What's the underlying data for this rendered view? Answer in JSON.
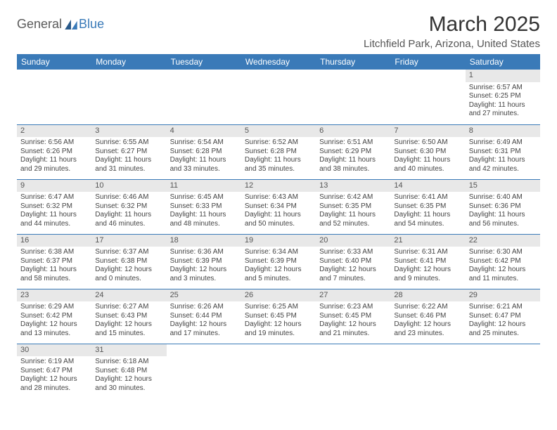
{
  "logo": {
    "text1": "General",
    "text2": "Blue"
  },
  "title": "March 2025",
  "location": "Litchfield Park, Arizona, United States",
  "colors": {
    "header_bg": "#3a7ab8",
    "header_text": "#ffffff",
    "border": "#3a7ab8",
    "daynum_bg": "#e8e8e8",
    "body_text": "#444444",
    "logo_gray": "#5a5a5a",
    "logo_blue": "#3a7ab8"
  },
  "weekdays": [
    "Sunday",
    "Monday",
    "Tuesday",
    "Wednesday",
    "Thursday",
    "Friday",
    "Saturday"
  ],
  "weeks": [
    [
      null,
      null,
      null,
      null,
      null,
      null,
      {
        "n": "1",
        "sr": "6:57 AM",
        "ss": "6:25 PM",
        "dl": "11 hours and 27 minutes."
      }
    ],
    [
      {
        "n": "2",
        "sr": "6:56 AM",
        "ss": "6:26 PM",
        "dl": "11 hours and 29 minutes."
      },
      {
        "n": "3",
        "sr": "6:55 AM",
        "ss": "6:27 PM",
        "dl": "11 hours and 31 minutes."
      },
      {
        "n": "4",
        "sr": "6:54 AM",
        "ss": "6:28 PM",
        "dl": "11 hours and 33 minutes."
      },
      {
        "n": "5",
        "sr": "6:52 AM",
        "ss": "6:28 PM",
        "dl": "11 hours and 35 minutes."
      },
      {
        "n": "6",
        "sr": "6:51 AM",
        "ss": "6:29 PM",
        "dl": "11 hours and 38 minutes."
      },
      {
        "n": "7",
        "sr": "6:50 AM",
        "ss": "6:30 PM",
        "dl": "11 hours and 40 minutes."
      },
      {
        "n": "8",
        "sr": "6:49 AM",
        "ss": "6:31 PM",
        "dl": "11 hours and 42 minutes."
      }
    ],
    [
      {
        "n": "9",
        "sr": "6:47 AM",
        "ss": "6:32 PM",
        "dl": "11 hours and 44 minutes."
      },
      {
        "n": "10",
        "sr": "6:46 AM",
        "ss": "6:32 PM",
        "dl": "11 hours and 46 minutes."
      },
      {
        "n": "11",
        "sr": "6:45 AM",
        "ss": "6:33 PM",
        "dl": "11 hours and 48 minutes."
      },
      {
        "n": "12",
        "sr": "6:43 AM",
        "ss": "6:34 PM",
        "dl": "11 hours and 50 minutes."
      },
      {
        "n": "13",
        "sr": "6:42 AM",
        "ss": "6:35 PM",
        "dl": "11 hours and 52 minutes."
      },
      {
        "n": "14",
        "sr": "6:41 AM",
        "ss": "6:35 PM",
        "dl": "11 hours and 54 minutes."
      },
      {
        "n": "15",
        "sr": "6:40 AM",
        "ss": "6:36 PM",
        "dl": "11 hours and 56 minutes."
      }
    ],
    [
      {
        "n": "16",
        "sr": "6:38 AM",
        "ss": "6:37 PM",
        "dl": "11 hours and 58 minutes."
      },
      {
        "n": "17",
        "sr": "6:37 AM",
        "ss": "6:38 PM",
        "dl": "12 hours and 0 minutes."
      },
      {
        "n": "18",
        "sr": "6:36 AM",
        "ss": "6:39 PM",
        "dl": "12 hours and 3 minutes."
      },
      {
        "n": "19",
        "sr": "6:34 AM",
        "ss": "6:39 PM",
        "dl": "12 hours and 5 minutes."
      },
      {
        "n": "20",
        "sr": "6:33 AM",
        "ss": "6:40 PM",
        "dl": "12 hours and 7 minutes."
      },
      {
        "n": "21",
        "sr": "6:31 AM",
        "ss": "6:41 PM",
        "dl": "12 hours and 9 minutes."
      },
      {
        "n": "22",
        "sr": "6:30 AM",
        "ss": "6:42 PM",
        "dl": "12 hours and 11 minutes."
      }
    ],
    [
      {
        "n": "23",
        "sr": "6:29 AM",
        "ss": "6:42 PM",
        "dl": "12 hours and 13 minutes."
      },
      {
        "n": "24",
        "sr": "6:27 AM",
        "ss": "6:43 PM",
        "dl": "12 hours and 15 minutes."
      },
      {
        "n": "25",
        "sr": "6:26 AM",
        "ss": "6:44 PM",
        "dl": "12 hours and 17 minutes."
      },
      {
        "n": "26",
        "sr": "6:25 AM",
        "ss": "6:45 PM",
        "dl": "12 hours and 19 minutes."
      },
      {
        "n": "27",
        "sr": "6:23 AM",
        "ss": "6:45 PM",
        "dl": "12 hours and 21 minutes."
      },
      {
        "n": "28",
        "sr": "6:22 AM",
        "ss": "6:46 PM",
        "dl": "12 hours and 23 minutes."
      },
      {
        "n": "29",
        "sr": "6:21 AM",
        "ss": "6:47 PM",
        "dl": "12 hours and 25 minutes."
      }
    ],
    [
      {
        "n": "30",
        "sr": "6:19 AM",
        "ss": "6:47 PM",
        "dl": "12 hours and 28 minutes."
      },
      {
        "n": "31",
        "sr": "6:18 AM",
        "ss": "6:48 PM",
        "dl": "12 hours and 30 minutes."
      },
      null,
      null,
      null,
      null,
      null
    ]
  ],
  "labels": {
    "sunrise": "Sunrise:",
    "sunset": "Sunset:",
    "daylight": "Daylight:"
  }
}
